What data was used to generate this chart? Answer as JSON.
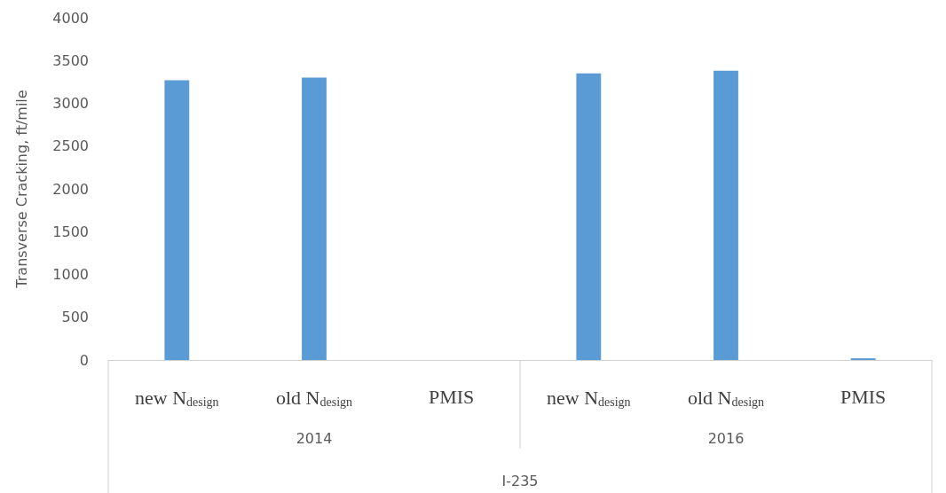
{
  "chart_data": {
    "type": "bar",
    "categories": [
      "new N$_{design}$",
      "old N$_{design}$",
      "PMIS",
      "new N$_{design}$",
      "old N$_{design}$",
      "PMIS"
    ],
    "values": [
      3270,
      3300,
      0,
      3350,
      3380,
      20
    ],
    "color": "#5b9bd5",
    "ylabel": "Transverse Cracking, ft/mile",
    "xlabel": "I-235",
    "annotations": [
      "2014",
      "2016"
    ],
    "ylim": [
      0,
      4000
    ],
    "yticks": [
      0,
      500,
      1000,
      1500,
      2000,
      2500,
      3000,
      3500,
      4000
    ],
    "grid": false
  }
}
